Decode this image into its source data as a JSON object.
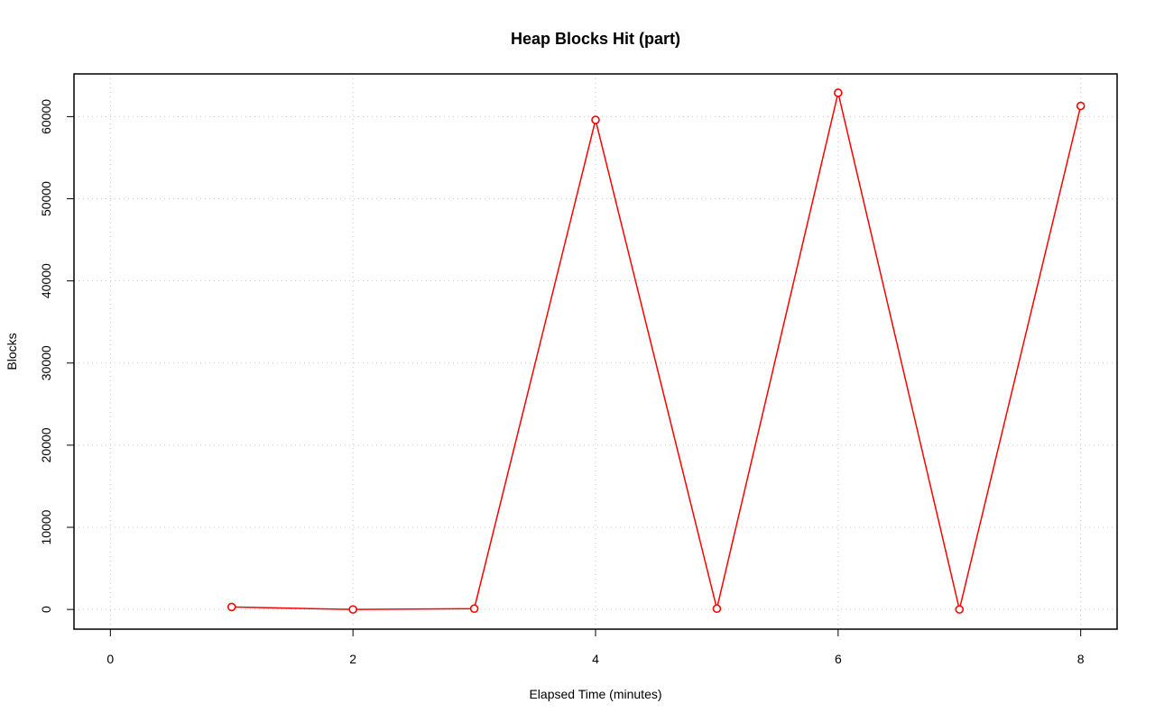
{
  "chart_data": {
    "type": "line",
    "title": "Heap Blocks Hit (part)",
    "xlabel": "Elapsed Time (minutes)",
    "ylabel": "Blocks",
    "xlim": [
      -0.3,
      8.3
    ],
    "ylim": [
      -2400,
      65200
    ],
    "xticks": [
      0,
      2,
      4,
      6,
      8
    ],
    "yticks": [
      0,
      10000,
      20000,
      30000,
      40000,
      50000,
      60000
    ],
    "grid": true,
    "series": [
      {
        "color": "#ff0000",
        "x": [
          1,
          2,
          3,
          4,
          5,
          6,
          7,
          8
        ],
        "y": [
          300,
          0,
          100,
          59600,
          100,
          62900,
          0,
          61300
        ]
      }
    ]
  }
}
